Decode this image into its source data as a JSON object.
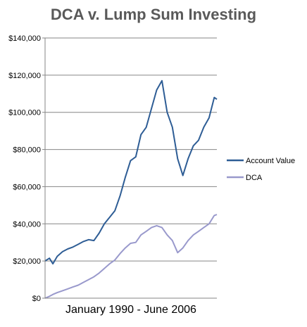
{
  "chart_data": {
    "type": "line",
    "title": "DCA v. Lump Sum Investing",
    "xlabel": "January 1990 - June 2006",
    "ylabel": "",
    "x_range": [
      "1990-01",
      "2006-06"
    ],
    "ylim": [
      0,
      140000
    ],
    "yticks": [
      0,
      20000,
      40000,
      60000,
      80000,
      100000,
      120000,
      140000
    ],
    "ytick_labels": [
      "$0",
      "$20,000",
      "$40,000",
      "$60,000",
      "$80,000",
      "$100,000",
      "$120,000",
      "$140,000"
    ],
    "grid": "horizontal",
    "legend_position": "right",
    "x_dates": [
      "1990-01",
      "1990-06",
      "1990-10",
      "1991-03",
      "1991-09",
      "1992-03",
      "1992-09",
      "1993-03",
      "1993-09",
      "1994-03",
      "1994-09",
      "1995-03",
      "1995-09",
      "1996-03",
      "1996-09",
      "1997-03",
      "1997-09",
      "1998-03",
      "1998-09",
      "1999-03",
      "1999-09",
      "2000-03",
      "2000-09",
      "2001-03",
      "2001-09",
      "2002-03",
      "2002-09",
      "2003-03",
      "2003-09",
      "2004-03",
      "2004-09",
      "2005-03",
      "2005-09",
      "2006-03",
      "2006-06"
    ],
    "series": [
      {
        "name": "Account Value",
        "color": "#2E5D95",
        "values": [
          20000,
          21500,
          18500,
          22500,
          25000,
          26500,
          27500,
          29000,
          30500,
          31500,
          31000,
          35000,
          40000,
          43500,
          47000,
          55000,
          65000,
          74000,
          76000,
          88000,
          92000,
          102000,
          112000,
          117000,
          100000,
          92000,
          75000,
          66000,
          75000,
          82000,
          85000,
          92000,
          97000,
          108000,
          107000
        ]
      },
      {
        "name": "DCA",
        "color": "#9999CC",
        "values": [
          0,
          1000,
          2000,
          3000,
          4000,
          5000,
          6000,
          7000,
          8500,
          10000,
          11500,
          13500,
          16000,
          18500,
          20500,
          24000,
          27000,
          29500,
          30000,
          34000,
          36000,
          38000,
          39000,
          38000,
          34000,
          31000,
          24500,
          27000,
          31000,
          34000,
          36000,
          38000,
          40000,
          44500,
          45000
        ]
      }
    ]
  },
  "colors": {
    "axis": "#868686",
    "grid": "#868686",
    "title": "#595959"
  }
}
